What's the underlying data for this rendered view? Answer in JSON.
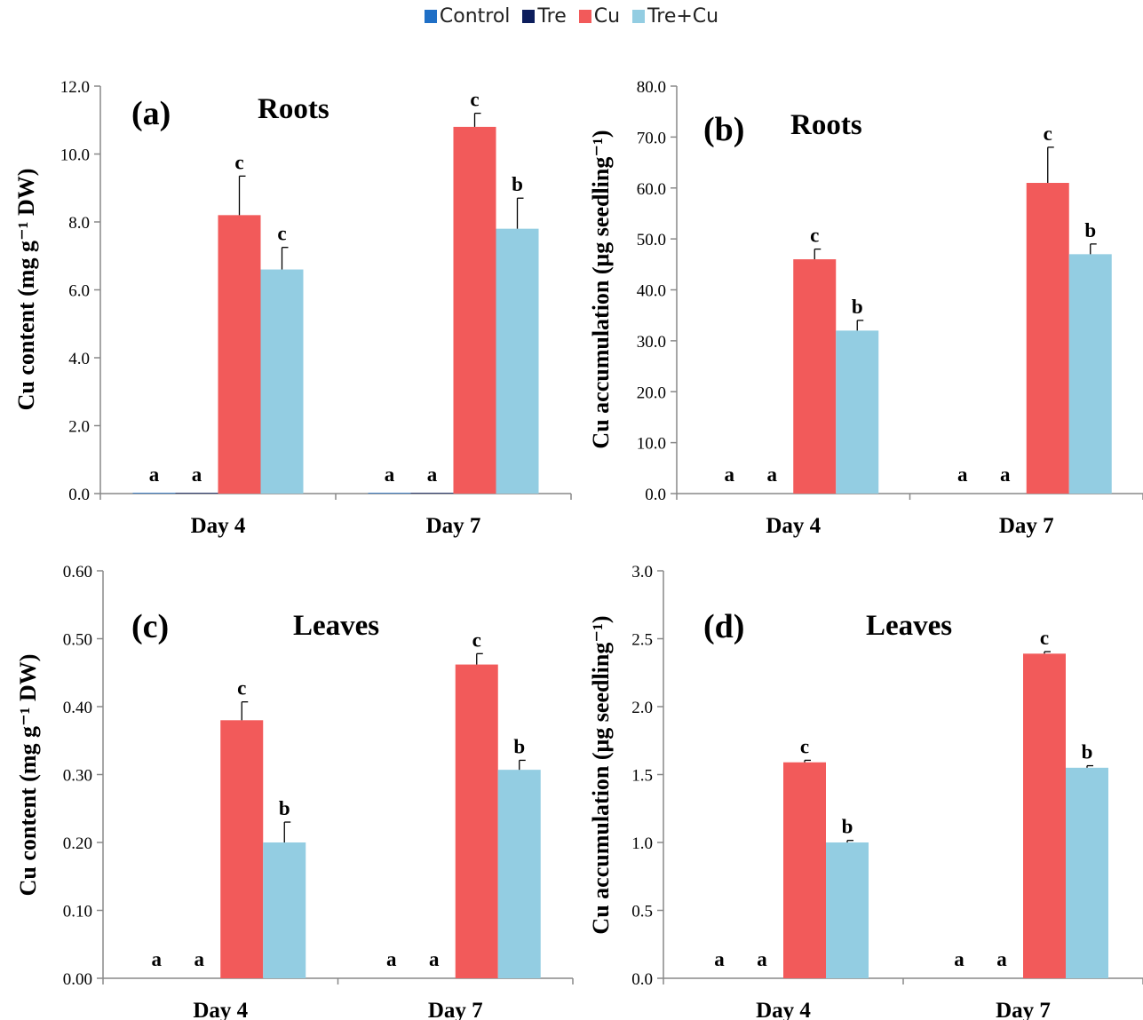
{
  "legend": [
    {
      "name": "Control",
      "color": "#1f6fc6"
    },
    {
      "name": "Tre",
      "color": "#0c1d5c"
    },
    {
      "name": "Cu",
      "color": "#f25a5a"
    },
    {
      "name": "Tre+Cu",
      "color": "#93cde2"
    }
  ],
  "chart_data": [
    {
      "type": "bar",
      "panel_label": "(a)",
      "title": "Roots",
      "ylabel": "Cu content (mg g⁻¹ DW)",
      "ylim": [
        0,
        12
      ],
      "yticks": [
        "0.0",
        "2.0",
        "4.0",
        "6.0",
        "8.0",
        "10.0",
        "12.0"
      ],
      "categories": [
        "Day 4",
        "Day 7"
      ],
      "series": [
        {
          "name": "Control",
          "values": [
            0.02,
            0.02
          ],
          "errors": [
            0,
            0
          ],
          "letters": [
            "a",
            "a"
          ]
        },
        {
          "name": "Tre",
          "values": [
            0.02,
            0.02
          ],
          "errors": [
            0,
            0
          ],
          "letters": [
            "a",
            "a"
          ]
        },
        {
          "name": "Cu",
          "values": [
            8.2,
            10.8
          ],
          "errors": [
            1.15,
            0.4
          ],
          "letters": [
            "c",
            "c"
          ]
        },
        {
          "name": "Tre+Cu",
          "values": [
            6.6,
            7.8
          ],
          "errors": [
            0.65,
            0.9
          ],
          "letters": [
            "c",
            "b"
          ]
        }
      ]
    },
    {
      "type": "bar",
      "panel_label": "(b)",
      "title": "Roots",
      "ylabel": "Cu accumulation (μg seedling⁻¹)",
      "ylim": [
        0,
        80
      ],
      "yticks": [
        "0.0",
        "10.0",
        "20.0",
        "30.0",
        "40.0",
        "50.0",
        "60.0",
        "70.0",
        "80.0"
      ],
      "categories": [
        "Day 4",
        "Day 7"
      ],
      "series": [
        {
          "name": "Control",
          "values": [
            0,
            0
          ],
          "errors": [
            0,
            0
          ],
          "letters": [
            "a",
            "a"
          ]
        },
        {
          "name": "Tre",
          "values": [
            0,
            0
          ],
          "errors": [
            0,
            0
          ],
          "letters": [
            "a",
            "a"
          ]
        },
        {
          "name": "Cu",
          "values": [
            46,
            61
          ],
          "errors": [
            2,
            7
          ],
          "letters": [
            "c",
            "c"
          ]
        },
        {
          "name": "Tre+Cu",
          "values": [
            32,
            47
          ],
          "errors": [
            2,
            2
          ],
          "letters": [
            "b",
            "b"
          ]
        }
      ]
    },
    {
      "type": "bar",
      "panel_label": "(c)",
      "title": "Leaves",
      "ylabel": "Cu content (mg g⁻¹ DW)",
      "ylim": [
        0,
        0.6
      ],
      "yticks": [
        "0.00",
        "0.10",
        "0.20",
        "0.30",
        "0.40",
        "0.50",
        "0.60"
      ],
      "categories": [
        "Day 4",
        "Day 7"
      ],
      "series": [
        {
          "name": "Control",
          "values": [
            0,
            0
          ],
          "errors": [
            0,
            0
          ],
          "letters": [
            "a",
            "a"
          ]
        },
        {
          "name": "Tre",
          "values": [
            0,
            0
          ],
          "errors": [
            0,
            0
          ],
          "letters": [
            "a",
            "a"
          ]
        },
        {
          "name": "Cu",
          "values": [
            0.38,
            0.462
          ],
          "errors": [
            0.027,
            0.016
          ],
          "letters": [
            "c",
            "c"
          ]
        },
        {
          "name": "Tre+Cu",
          "values": [
            0.2,
            0.307
          ],
          "errors": [
            0.03,
            0.014
          ],
          "letters": [
            "b",
            "b"
          ]
        }
      ]
    },
    {
      "type": "bar",
      "panel_label": "(d)",
      "title": "Leaves",
      "ylabel": "Cu accumulation (μg seedling⁻¹)",
      "ylim": [
        0,
        3
      ],
      "yticks": [
        "0.0",
        "0.5",
        "1.0",
        "1.5",
        "2.0",
        "2.5",
        "3.0"
      ],
      "categories": [
        "Day 4",
        "Day 7"
      ],
      "series": [
        {
          "name": "Control",
          "values": [
            0,
            0
          ],
          "errors": [
            0,
            0
          ],
          "letters": [
            "a",
            "a"
          ]
        },
        {
          "name": "Tre",
          "values": [
            0,
            0
          ],
          "errors": [
            0,
            0
          ],
          "letters": [
            "a",
            "a"
          ]
        },
        {
          "name": "Cu",
          "values": [
            1.59,
            2.39
          ],
          "errors": [
            0.015,
            0.015
          ],
          "letters": [
            "c",
            "c"
          ]
        },
        {
          "name": "Tre+Cu",
          "values": [
            1.0,
            1.55
          ],
          "errors": [
            0.015,
            0.015
          ],
          "letters": [
            "b",
            "b"
          ]
        }
      ]
    }
  ]
}
